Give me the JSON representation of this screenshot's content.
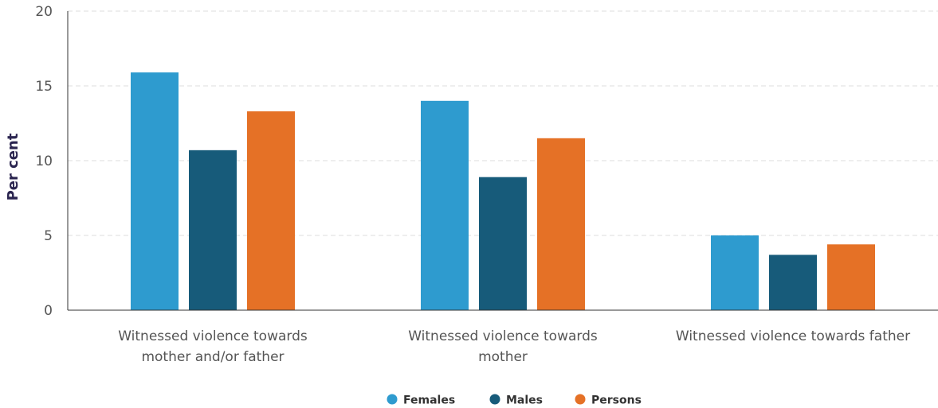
{
  "chart_data": {
    "type": "bar",
    "title": "",
    "xlabel": "",
    "ylabel": "Per cent",
    "ylim": [
      0,
      20
    ],
    "yticks": [
      0,
      5,
      10,
      15,
      20
    ],
    "grid": true,
    "legend_position": "bottom-center",
    "categories": [
      [
        "Witnessed violence towards",
        "mother and/or father"
      ],
      [
        "Witnessed violence towards",
        "mother"
      ],
      [
        "Witnessed violence towards father"
      ]
    ],
    "series": [
      {
        "name": "Females",
        "color": "#2e9bcf",
        "values": [
          15.9,
          14.0,
          5.0
        ]
      },
      {
        "name": "Males",
        "color": "#175b7a",
        "values": [
          10.7,
          8.9,
          3.7
        ]
      },
      {
        "name": "Persons",
        "color": "#e57126",
        "values": [
          13.3,
          11.5,
          4.4
        ]
      }
    ]
  }
}
